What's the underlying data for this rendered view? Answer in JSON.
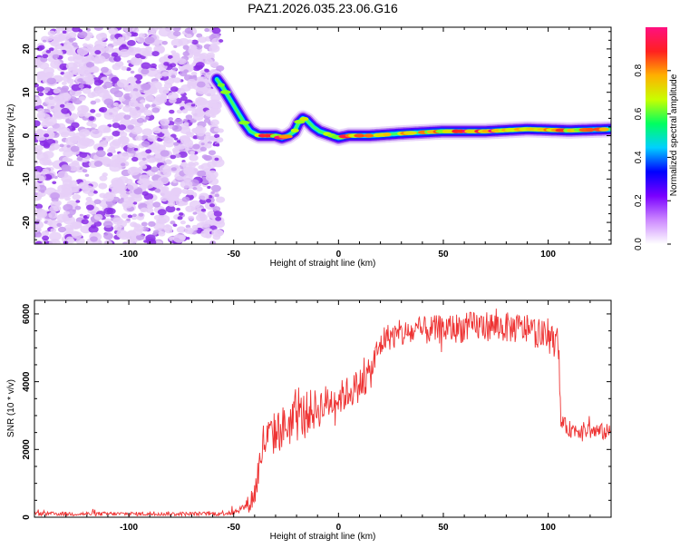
{
  "chart_data": [
    {
      "type": "heatmap",
      "title": "PAZ1.2026.035.23.06.G16",
      "xlabel": "Height of straight line (km)",
      "ylabel": "Frequency (Hz)",
      "xlim": [
        -145,
        130
      ],
      "ylim": [
        -25,
        25
      ],
      "xticks": [
        -100,
        -50,
        0,
        50,
        100
      ],
      "yticks": [
        -20,
        -10,
        0,
        10,
        20
      ],
      "colorbar": {
        "label": "Normalized spectral amplitude",
        "range": [
          0,
          1
        ],
        "ticks": [
          0.0,
          0.2,
          0.4,
          0.6,
          0.8
        ],
        "colors": [
          "#ffffff",
          "#cc88ff",
          "#7a00ff",
          "#0000ff",
          "#00d0ff",
          "#00ff60",
          "#c8ff00",
          "#ffb000",
          "#ff2020",
          "#ff1080"
        ]
      },
      "noise_region_x": [
        -145,
        -58
      ],
      "ridge": {
        "x": [
          -58,
          -55,
          -50,
          -45,
          -42,
          -38,
          -34,
          -30,
          -27,
          -24,
          -21,
          -19,
          -17,
          -15,
          -12,
          -9,
          -6,
          -3,
          0,
          5,
          15,
          30,
          50,
          70,
          90,
          110,
          130
        ],
        "y": [
          13,
          11,
          7,
          3,
          1,
          0,
          0,
          0,
          -0.5,
          0,
          1,
          3,
          4,
          3.5,
          2,
          1,
          0.5,
          0,
          -0.5,
          0,
          0,
          0.5,
          1,
          1,
          1.5,
          1.2,
          1.5
        ],
        "amplitude": [
          0.45,
          0.5,
          0.55,
          0.5,
          0.6,
          0.75,
          0.8,
          0.7,
          0.85,
          0.6,
          0.5,
          0.45,
          0.55,
          0.5,
          0.45,
          0.5,
          0.55,
          0.6,
          0.7,
          0.85,
          0.7,
          0.65,
          0.8,
          0.85,
          0.8,
          0.75,
          0.7
        ]
      }
    },
    {
      "type": "line",
      "xlabel": "Height of straight line (km)",
      "ylabel": "SNR (10 * v/v)",
      "xlim": [
        -145,
        130
      ],
      "ylim": [
        0,
        6400
      ],
      "xticks": [
        -100,
        -50,
        0,
        50,
        100
      ],
      "yticks": [
        0,
        2000,
        4000,
        6000
      ],
      "color": "#ee3333",
      "envelope": {
        "x": [
          -145,
          -60,
          -50,
          -45,
          -42,
          -40,
          -38,
          -36,
          -30,
          -25,
          -20,
          -15,
          -10,
          -5,
          0,
          5,
          10,
          15,
          18,
          22,
          30,
          40,
          50,
          60,
          70,
          80,
          90,
          100,
          105,
          106,
          110,
          120,
          130
        ],
        "y": [
          100,
          100,
          150,
          300,
          450,
          700,
          1400,
          2200,
          2500,
          2700,
          2900,
          3100,
          3200,
          3400,
          3500,
          3700,
          3900,
          4200,
          4800,
          5300,
          5400,
          5500,
          5550,
          5600,
          5650,
          5600,
          5550,
          5300,
          5100,
          2800,
          2600,
          2550,
          2500
        ]
      },
      "noise_amplitude": {
        "x": [
          -145,
          -60,
          -45,
          -38,
          -20,
          0,
          15,
          22,
          60,
          105,
          106,
          130
        ],
        "y": [
          60,
          60,
          120,
          600,
          700,
          500,
          500,
          400,
          450,
          450,
          250,
          250
        ]
      }
    }
  ]
}
